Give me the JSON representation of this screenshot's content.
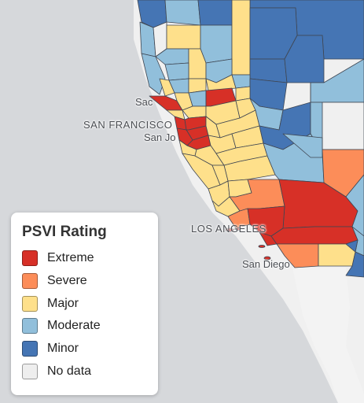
{
  "legend": {
    "title": "PSVI Rating",
    "items": [
      {
        "label": "Extreme",
        "color": "#d73027"
      },
      {
        "label": "Severe",
        "color": "#fc8d59"
      },
      {
        "label": "Major",
        "color": "#fee08b"
      },
      {
        "label": "Moderate",
        "color": "#91bfdb"
      },
      {
        "label": "Minor",
        "color": "#4575b4"
      },
      {
        "label": "No data",
        "color": "#eeeeee"
      }
    ]
  },
  "map_labels": {
    "sacramento": "Sac",
    "san_francisco": "SAN FRANCISCO",
    "san_jose": "San Jo",
    "los_angeles": "LOS ANGELES",
    "san_diego": "San Diego"
  }
}
